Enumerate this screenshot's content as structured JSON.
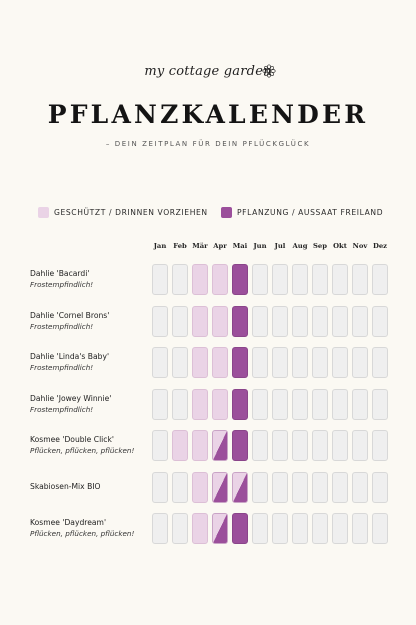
{
  "logo": {
    "text": "my cottage garden",
    "icon": "flower-icon"
  },
  "title": "PFLANZKALENDER",
  "subtitle": "– DEIN ZEITPLAN FÜR DEIN PFLÜCKGLÜCK",
  "legend": [
    {
      "label": "GESCHÜTZT / DRINNEN VORZIEHEN",
      "color": "#ead3e6"
    },
    {
      "label": "PFLANZUNG / AUSSAAT FREILAND",
      "color": "#9b4f9b"
    }
  ],
  "months": [
    "Jan",
    "Feb",
    "Mär",
    "Apr",
    "Mai",
    "Jun",
    "Jul",
    "Aug",
    "Sep",
    "Okt",
    "Nov",
    "Dez"
  ],
  "plants": [
    {
      "name": "Dahlie 'Bacardi'",
      "note": "Frostempfindlich!",
      "months": [
        "",
        "",
        "light",
        "light",
        "dark",
        "",
        "",
        "",
        "",
        "",
        "",
        ""
      ]
    },
    {
      "name": "Dahlie 'Cornel Brons'",
      "note": "Frostempfindlich!",
      "months": [
        "",
        "",
        "light",
        "light",
        "dark",
        "",
        "",
        "",
        "",
        "",
        "",
        ""
      ]
    },
    {
      "name": "Dahlie 'Linda's Baby'",
      "note": "Frostempfindlich!",
      "months": [
        "",
        "",
        "light",
        "light",
        "dark",
        "",
        "",
        "",
        "",
        "",
        "",
        ""
      ]
    },
    {
      "name": "Dahlie 'Jowey Winnie'",
      "note": "Frostempfindlich!",
      "months": [
        "",
        "",
        "light",
        "light",
        "dark",
        "",
        "",
        "",
        "",
        "",
        "",
        ""
      ]
    },
    {
      "name": "Kosmee 'Double Click'",
      "note": "Pflücken, pflücken, pflücken!",
      "months": [
        "",
        "light",
        "light",
        "split",
        "dark",
        "",
        "",
        "",
        "",
        "",
        "",
        ""
      ]
    },
    {
      "name": "Skabiosen-Mix BIO",
      "note": "",
      "months": [
        "",
        "",
        "light",
        "split",
        "split",
        "",
        "",
        "",
        "",
        "",
        "",
        ""
      ]
    },
    {
      "name": "Kosmee 'Daydream'",
      "note": "Pflücken, pflücken, pflücken!",
      "months": [
        "",
        "",
        "light",
        "split",
        "dark",
        "",
        "",
        "",
        "",
        "",
        "",
        ""
      ]
    }
  ]
}
